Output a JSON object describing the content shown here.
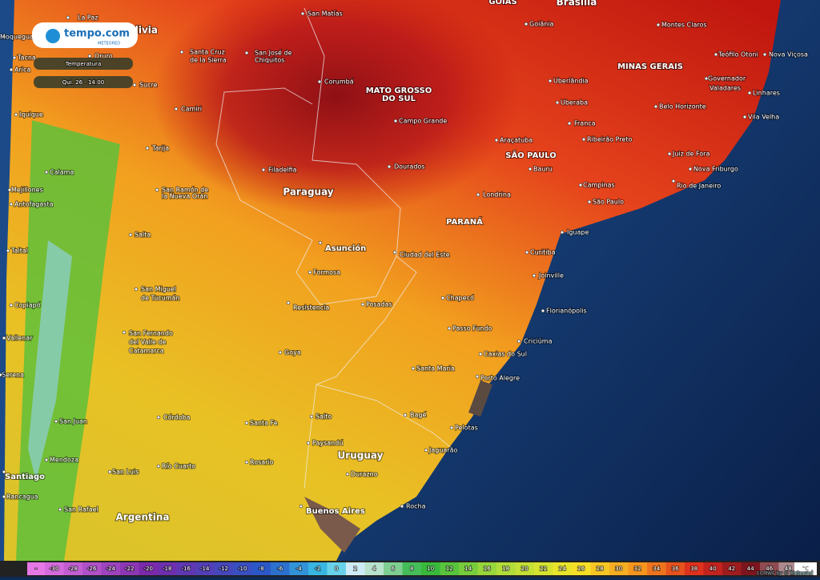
{
  "header": {
    "brand": "tempo.com",
    "sub_brand": "METEORED",
    "layer": "Temperatura",
    "time": "Qui. 26 - 14:00"
  },
  "regions": [
    "Bolivia",
    "Paraguay",
    "Uruguay",
    "Argentina",
    "Brasília",
    "GOIÁS",
    "MATO GROSSO",
    "DO SUL",
    "MINAS GERAIS",
    "SÃO PAULO",
    "PARANÁ"
  ],
  "cities": [
    "La Paz",
    "Moquegua",
    "Tacna",
    "Oruro",
    "Arica",
    "Sucre",
    "Santa Cruz",
    "de la Sierra",
    "San José de",
    "Chiquitos",
    "San Matías",
    "Corumbá",
    "Camiri",
    "Iquique",
    "Tarija",
    "Calama",
    "Mejillones",
    "Antofagasta",
    "San Ramón de",
    "la Nueva Orán",
    "Filadelfia",
    "Salta",
    "Taltal",
    "Asunción",
    "Ciudad del Este",
    "Formosa",
    "San Miguel",
    "de Tucumán",
    "Copiapó",
    "Resistencia",
    "Posadas",
    "Vallenar",
    "San Fernando",
    "del Valle de",
    "Catamarca",
    "Goya",
    "Serena",
    "San Juan",
    "Córdoba",
    "Santa Fe",
    "Salto",
    "Paysandú",
    "Mendoza",
    "San Luis",
    "Río Cuarto",
    "Rosario",
    "Durazno",
    "Santiago",
    "Rancagua",
    "San Rafael",
    "Buenos Aires",
    "Rocha",
    "Goiânia",
    "Montes Claros",
    "Teófilo Otoni",
    "Nova Viçosa",
    "Uberlândia",
    "Governador",
    "Valadares",
    "Uberaba",
    "Linhares",
    "Belo Horizonte",
    "Campo Grande",
    "Franca",
    "Vila Velha",
    "Araçatuba",
    "Ribeirão Preto",
    "Dourados",
    "Bauru",
    "Juiz de Fora",
    "Nova Friburgo",
    "Campinas",
    "Rio de Janeiro",
    "Londrina",
    "São Paulo",
    "Iguape",
    "Curitiba",
    "Joinville",
    "Chapecó",
    "Florianópolis",
    "Passo Fundo",
    "Criciúma",
    "Caxias do Sul",
    "Santa Maria",
    "Porto Alegre",
    "Bagé",
    "Pelotas",
    "Jaguarão"
  ],
  "legend": {
    "start": "-",
    "values": [
      -30,
      -28,
      -26,
      -24,
      -22,
      -20,
      -18,
      -16,
      -14,
      -12,
      -10,
      -8,
      -6,
      -4,
      -2,
      0,
      2,
      4,
      6,
      8,
      10,
      12,
      14,
      16,
      18,
      20,
      22,
      24,
      26,
      28,
      30,
      32,
      34,
      36,
      38,
      40,
      42,
      44,
      46,
      48
    ],
    "unit": "°C",
    "credit": "ECMWF by © Meteored"
  }
}
